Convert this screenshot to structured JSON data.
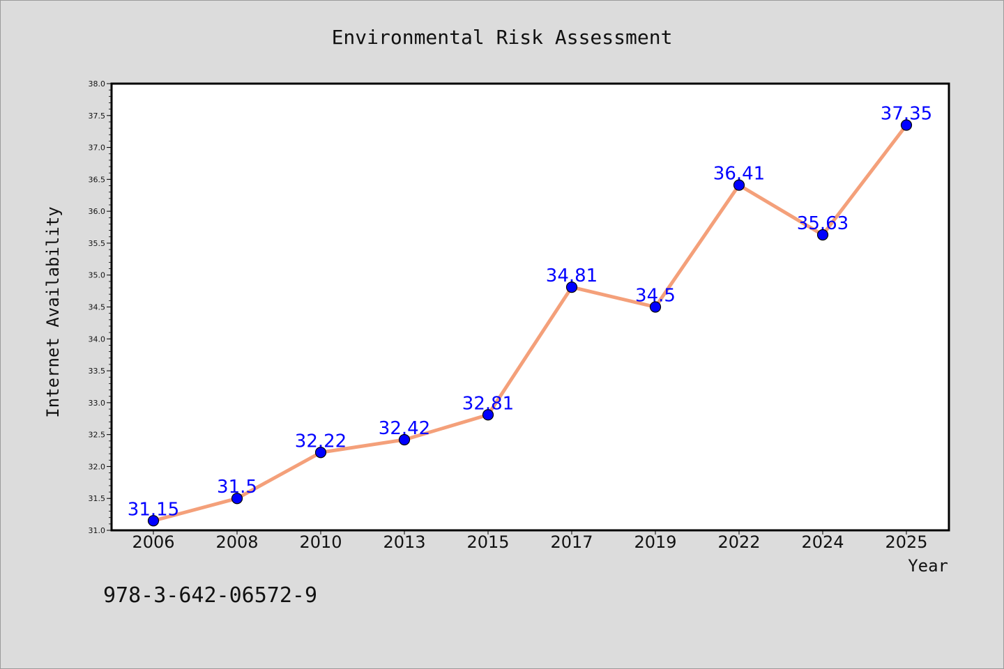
{
  "chart_data": {
    "type": "line",
    "title": "Environmental Risk Assessment",
    "xlabel": "Year",
    "ylabel": "Internet Availability",
    "categories": [
      "2006",
      "2008",
      "2010",
      "2013",
      "2015",
      "2017",
      "2019",
      "2022",
      "2024",
      "2025"
    ],
    "series": [
      {
        "values": [
          31.15,
          31.5,
          32.22,
          32.42,
          32.81,
          34.81,
          34.5,
          36.41,
          35.63,
          37.35
        ]
      }
    ],
    "data_labels": [
      "31.15",
      "31.5",
      "32.22",
      "32.42",
      "32.81",
      "34.81",
      "34.5",
      "36.41",
      "35.63",
      "37.35"
    ],
    "ylim": [
      31.0,
      38.0
    ],
    "yticks": [
      "31.0",
      "31.5",
      "32.0",
      "32.5",
      "33.0",
      "33.5",
      "34.0",
      "34.5",
      "35.0",
      "35.5",
      "36.0",
      "36.5",
      "37.0",
      "37.5",
      "38.0"
    ],
    "grid": false,
    "line_color": "#f4a07a",
    "marker_color": "#0000ff",
    "label_color": "#0000ff",
    "background_color": "#dcdcdc",
    "plot_background_color": "#ffffff"
  },
  "footer_text": "978-3-642-06572-9"
}
